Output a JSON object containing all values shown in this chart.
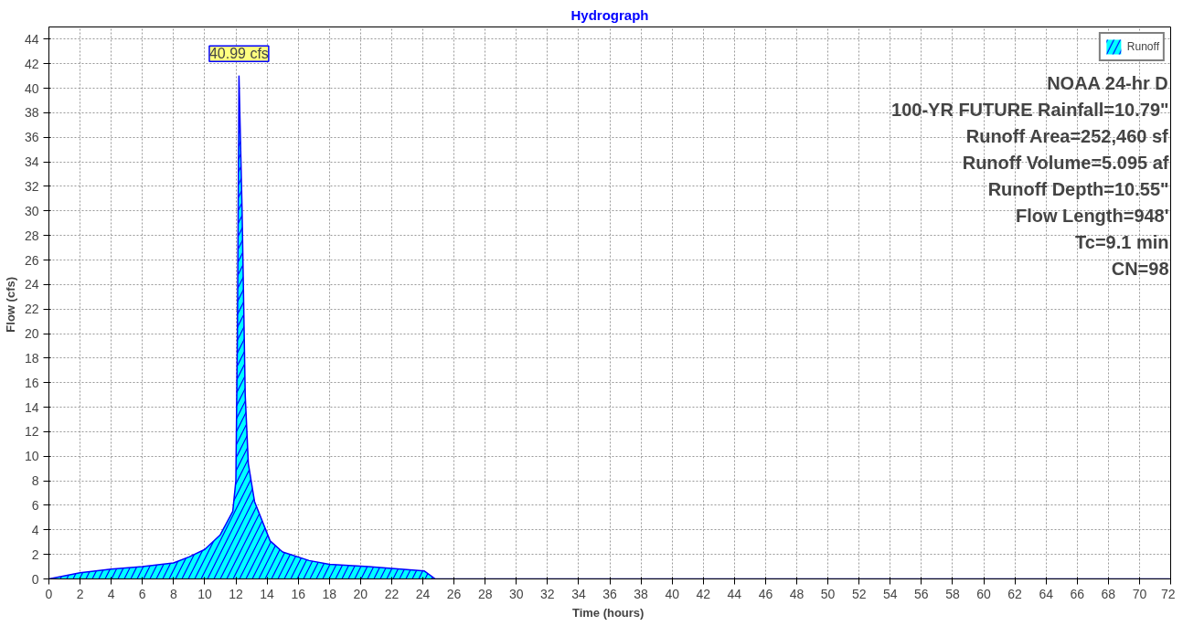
{
  "chart_data": {
    "type": "area",
    "title": "Hydrograph",
    "xlabel": "Time  (hours)",
    "ylabel": "Flow  (cfs)",
    "x": [
      0,
      2,
      4,
      6,
      8,
      9,
      10,
      11,
      11.8,
      12.0,
      12.1,
      12.2,
      12.4,
      12.6,
      12.8,
      13.2,
      14.2,
      15,
      16.7,
      18,
      20.5,
      22,
      24.1,
      24.8,
      72
    ],
    "series": [
      {
        "name": "Runoff",
        "color": "#00ffff",
        "values": [
          0,
          0.5,
          0.8,
          1.0,
          1.3,
          1.8,
          2.4,
          3.6,
          5.5,
          8,
          20,
          40.99,
          30,
          15,
          9.4,
          6.3,
          3.1,
          2.2,
          1.5,
          1.2,
          1.0,
          0.85,
          0.65,
          0,
          0
        ]
      }
    ],
    "xlim": [
      0,
      72
    ],
    "ylim": [
      0,
      45
    ],
    "xticks": [
      0,
      2,
      4,
      6,
      8,
      10,
      12,
      14,
      16,
      18,
      20,
      22,
      24,
      26,
      28,
      30,
      32,
      34,
      36,
      38,
      40,
      42,
      44,
      46,
      48,
      50,
      52,
      54,
      56,
      58,
      60,
      62,
      64,
      66,
      68,
      70,
      72
    ],
    "yticks": [
      0,
      2,
      4,
      6,
      8,
      10,
      12,
      14,
      16,
      18,
      20,
      22,
      24,
      26,
      28,
      30,
      32,
      34,
      36,
      38,
      40,
      42,
      44
    ],
    "grid": true,
    "legend": "top right",
    "annotations": [
      {
        "text": "40.99 cfs",
        "x": 12.2,
        "y": 40.99
      },
      "NOAA 24-hr D",
      "100-YR FUTURE Rainfall=10.79\"",
      "Runoff Area=252,460 sf",
      "Runoff Volume=5.095 af",
      "Runoff Depth=10.55\"",
      "Flow Length=948'",
      "Tc=9.1 min",
      "CN=98"
    ]
  }
}
